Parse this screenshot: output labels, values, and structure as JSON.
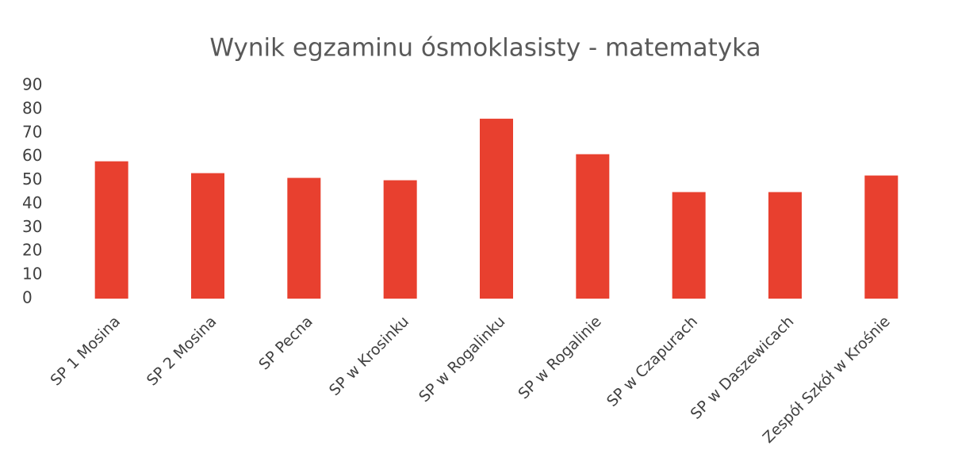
{
  "chart_data": {
    "type": "bar",
    "title": "Wynik egzaminu ósmoklasisty - matematyka",
    "categories": [
      "SP 1 Mosina",
      "SP 2 Mosina",
      "SP Pecna",
      "SP w Krosinku",
      "SP w Rogalinku",
      "SP w Rogalinie",
      "SP w Czapurach",
      "SP w Daszewicach",
      "Zespół Szkół w Krośnie"
    ],
    "values": [
      58,
      53,
      51,
      50,
      76,
      61,
      45,
      45,
      52
    ],
    "color": "#e8402f",
    "ylim": [
      0,
      90
    ],
    "yticks": [
      0,
      10,
      20,
      30,
      40,
      50,
      60,
      70,
      80,
      90
    ],
    "grid": false
  }
}
